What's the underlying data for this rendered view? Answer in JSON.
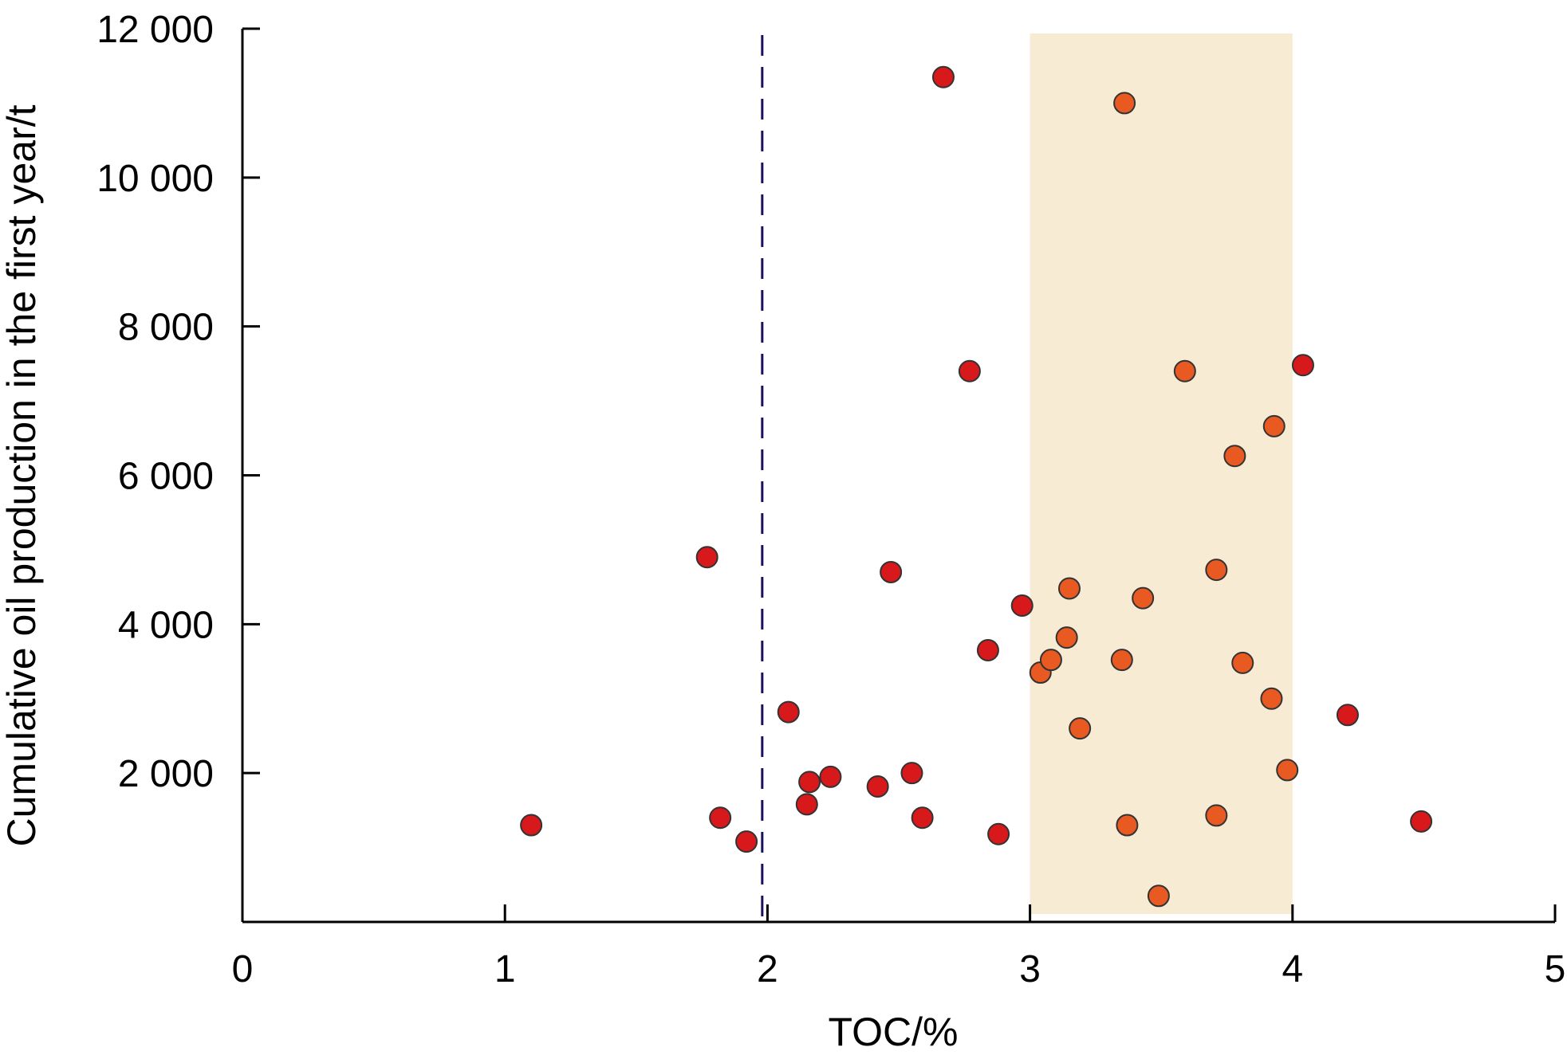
{
  "chart_data": {
    "type": "scatter",
    "title": "",
    "xlabel": "TOC/%",
    "ylabel": "Cumulative oil production in the first year/t",
    "xlim": [
      0,
      5
    ],
    "ylim": [
      0,
      12000
    ],
    "x_ticks": [
      0,
      1,
      2,
      3,
      4,
      5
    ],
    "x_tick_labels": [
      "0",
      "1",
      "2",
      "3",
      "4",
      "5"
    ],
    "y_ticks": [
      2000,
      4000,
      6000,
      8000,
      10000,
      12000
    ],
    "y_tick_labels": [
      "2 000",
      "4 000",
      "6 000",
      "8 000",
      "10 000",
      "12 000"
    ],
    "grid": false,
    "reference_line": {
      "x": 1.98,
      "style": "dashed",
      "color": "#1a1060"
    },
    "highlight_band": {
      "x_from": 3.0,
      "x_to": 4.0,
      "color": "#f7ebd4"
    },
    "series": [
      {
        "color": "#d7191c",
        "points": [
          [
            1.1,
            1300
          ],
          [
            1.77,
            4900
          ],
          [
            1.82,
            1400
          ],
          [
            1.92,
            1080
          ],
          [
            2.08,
            2820
          ],
          [
            2.15,
            1580
          ],
          [
            2.16,
            1880
          ],
          [
            2.24,
            1950
          ],
          [
            2.42,
            1820
          ],
          [
            2.47,
            4700
          ],
          [
            2.55,
            2000
          ],
          [
            2.59,
            1400
          ],
          [
            2.67,
            11350
          ],
          [
            2.77,
            7400
          ],
          [
            2.84,
            3650
          ],
          [
            2.88,
            1180
          ],
          [
            2.97,
            4250
          ],
          [
            4.04,
            7480
          ],
          [
            4.21,
            2780
          ],
          [
            4.49,
            1350
          ]
        ]
      },
      {
        "color": "#e85a22",
        "points": [
          [
            3.04,
            3350
          ],
          [
            3.08,
            3520
          ],
          [
            3.14,
            3820
          ],
          [
            3.15,
            4480
          ],
          [
            3.19,
            2600
          ],
          [
            3.36,
            11000
          ],
          [
            3.35,
            3520
          ],
          [
            3.37,
            1300
          ],
          [
            3.43,
            4350
          ],
          [
            3.49,
            350
          ],
          [
            3.59,
            7400
          ],
          [
            3.71,
            4730
          ],
          [
            3.71,
            1430
          ],
          [
            3.78,
            6260
          ],
          [
            3.81,
            3480
          ],
          [
            3.92,
            3000
          ],
          [
            3.93,
            6660
          ],
          [
            3.98,
            2040
          ]
        ]
      }
    ]
  }
}
